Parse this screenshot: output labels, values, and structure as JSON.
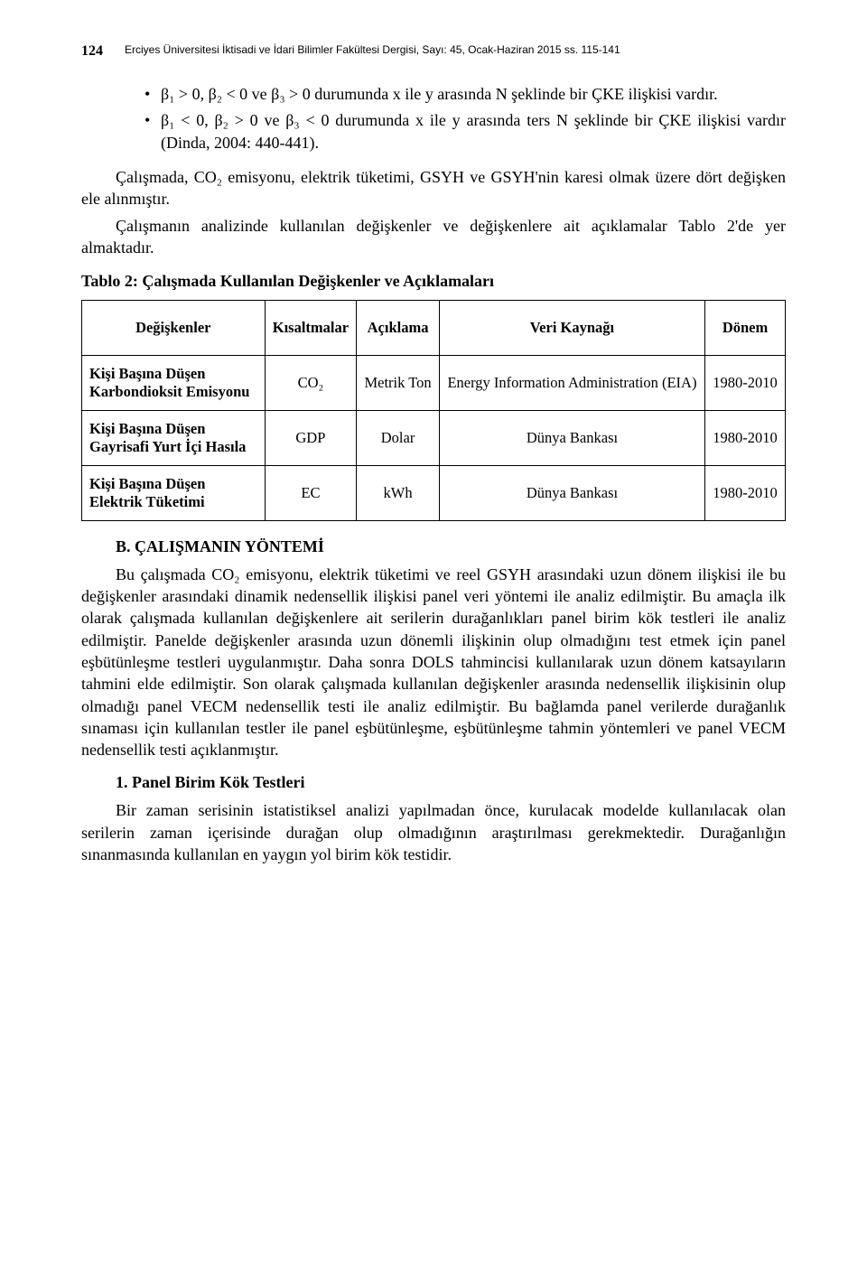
{
  "header": {
    "page_number": "124",
    "journal": "Erciyes Üniversitesi İktisadi ve İdari Bilimler Fakültesi Dergisi, Sayı: 45, Ocak-Haziran 2015 ss. 115-141"
  },
  "bullets": [
    "β₁ > 0, β₂ < 0 ve β₃ > 0 durumunda x ile y arasında N şeklinde bir ÇKE ilişkisi vardır.",
    "β₁ < 0, β₂ > 0 ve β₃ < 0 durumunda x ile y arasında ters N şeklinde bir ÇKE ilişkisi vardır (Dinda, 2004: 440-441)."
  ],
  "para1": "Çalışmada, CO₂ emisyonu, elektrik tüketimi, GSYH ve GSYH'nin karesi olmak üzere dört değişken ele alınmıştır.",
  "para2": "Çalışmanın analizinde kullanılan değişkenler ve değişkenlere ait açıklamalar Tablo 2'de yer almaktadır.",
  "table": {
    "caption": "Tablo 2: Çalışmada Kullanılan Değişkenler ve Açıklamaları",
    "columns": [
      "Değişkenler",
      "Kısaltmalar",
      "Açıklama",
      "Veri Kaynağı",
      "Dönem"
    ],
    "rows": [
      [
        "Kişi Başına Düşen Karbondioksit Emisyonu",
        "CO₂",
        "Metrik Ton",
        "Energy Information Administration (EIA)",
        "1980-2010"
      ],
      [
        "Kişi Başına Düşen Gayrisafi Yurt İçi Hasıla",
        "GDP",
        "Dolar",
        "Dünya Bankası",
        "1980-2010"
      ],
      [
        "Kişi Başına Düşen Elektrik Tüketimi",
        "EC",
        "kWh",
        "Dünya Bankası",
        "1980-2010"
      ]
    ]
  },
  "section_b": {
    "heading": "B. ÇALIŞMANIN YÖNTEMİ",
    "para": "Bu çalışmada CO₂ emisyonu, elektrik tüketimi ve reel GSYH arasındaki uzun dönem ilişkisi ile bu değişkenler arasındaki dinamik nedensellik ilişkisi panel veri yöntemi ile analiz edilmiştir. Bu amaçla ilk olarak çalışmada kullanılan değişkenlere ait serilerin durağanlıkları panel birim kök testleri ile analiz edilmiştir. Panelde değişkenler arasında uzun dönemli ilişkinin olup olmadığını test etmek için panel eşbütünleşme testleri uygulanmıştır. Daha sonra DOLS tahmincisi kullanılarak uzun dönem katsayıların tahmini elde edilmiştir. Son olarak çalışmada kullanılan değişkenler arasında nedensellik ilişkisinin olup olmadığı panel VECM nedensellik testi ile analiz edilmiştir. Bu bağlamda panel verilerde durağanlık sınaması için kullanılan testler ile panel eşbütünleşme, eşbütünleşme tahmin yöntemleri ve panel VECM nedensellik testi açıklanmıştır."
  },
  "section_1": {
    "heading": "1. Panel Birim Kök Testleri",
    "para": "Bir zaman serisinin istatistiksel analizi yapılmadan önce, kurulacak modelde kullanılacak olan serilerin zaman içerisinde durağan olup olmadığının araştırılması gerekmektedir. Durağanlığın sınanmasında kullanılan en yaygın yol birim kök testidir."
  }
}
